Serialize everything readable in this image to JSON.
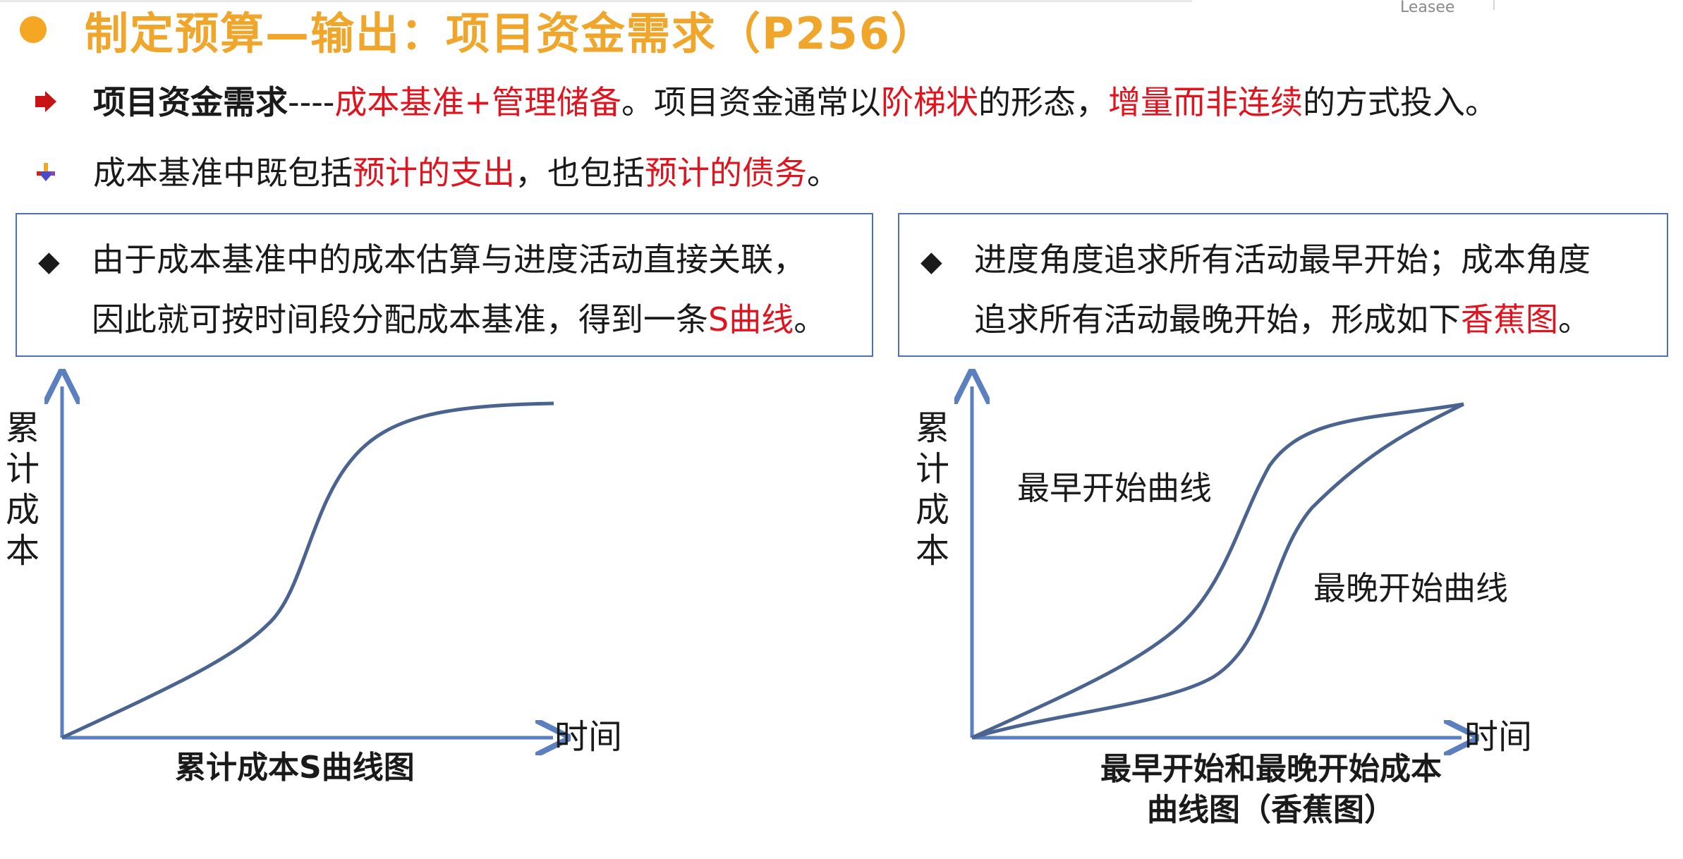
{
  "corner_mark": "Leasee",
  "title": "制定预算—输出：项目资金需求（P256）",
  "line1": {
    "term": "项目资金需求",
    "dashes": "----",
    "formula": "成本基准+管理储备",
    "text_a": "。项目资金通常以",
    "hl1": "阶梯状",
    "text_b": "的形态，",
    "hl2": "增量而非连续",
    "text_c": "的方式投入。"
  },
  "line2": {
    "text_a": "成本基准中既包括",
    "hl1": "预计的支出",
    "text_b": "，也包括",
    "hl2": "预计的债务",
    "text_c": "。"
  },
  "box_left": {
    "line1": "由于成本基准中的成本估算与进度活动直接关联，",
    "line2_a": "因此就可按时间段分配成本基准，得到一条",
    "line2_hl": "S曲线",
    "line2_end": "。"
  },
  "box_right": {
    "line1": "进度角度追求所有活动最早开始；成本角度",
    "line2_a": "追求所有活动最晚开始，形成如下",
    "line2_hl": "香蕉图",
    "line2_end": "。"
  },
  "chart_left": {
    "y_label_chars": [
      "累",
      "计",
      "成",
      "本"
    ],
    "x_label": "时间",
    "caption": "累计成本S曲线图"
  },
  "chart_right": {
    "y_label_chars": [
      "累",
      "计",
      "成",
      "本"
    ],
    "x_label": "时间",
    "early_label": "最早开始曲线",
    "late_label": "最晚开始曲线",
    "caption_line1": "最早开始和最晚开始成本",
    "caption_line2": "曲线图（香蕉图）"
  },
  "colors": {
    "title": "#f0a62a",
    "highlight": "#e0141e",
    "box_border": "#4f6fb8",
    "axis": "#5b7fbf",
    "curve": "#4a648f"
  },
  "icons": {
    "title_bullet": "orange-dot-icon",
    "line1_bullet": "red-arrow-icon",
    "line2_bullet": "multicolor-arrow-icon",
    "box_bullet": "diamond-icon"
  }
}
